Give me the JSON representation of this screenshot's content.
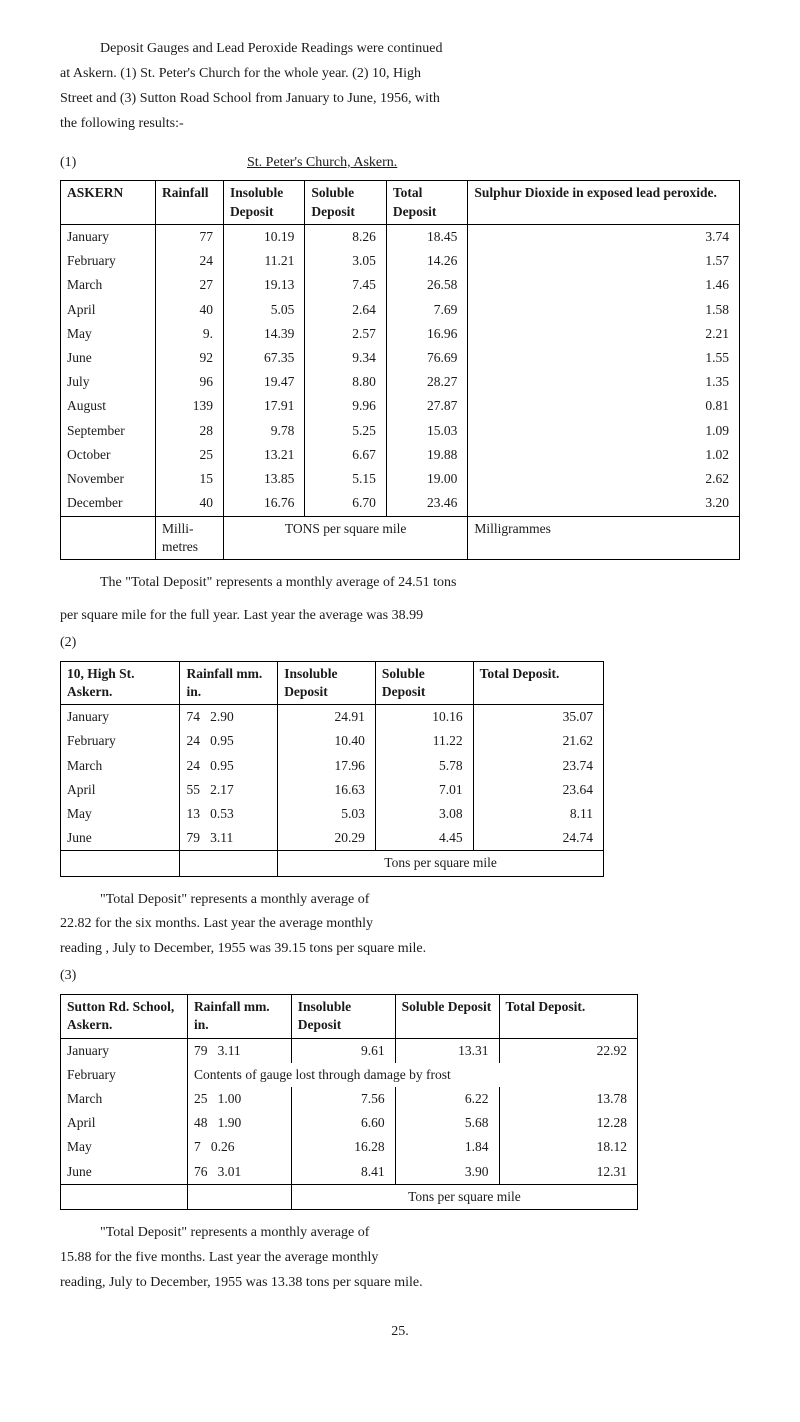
{
  "intro": {
    "line1": "Deposit Gauges and Lead Peroxide Readings were continued",
    "line2": "at Askern. (1) St. Peter's Church for the whole year. (2) 10, High",
    "line3": "Street and (3) Sutton Road School from January to June, 1956, with",
    "line4": "the following results:-"
  },
  "table1": {
    "label": "(1)",
    "caption": "St. Peter's Church, Askern.",
    "headers": [
      "ASKERN",
      "Rainfall",
      "Insoluble Deposit",
      "Soluble Deposit",
      "Total Deposit",
      "Sulphur Dioxide in exposed lead peroxide."
    ],
    "rows": [
      [
        "January",
        "77",
        "10.19",
        "8.26",
        "18.45",
        "3.74"
      ],
      [
        "February",
        "24",
        "11.21",
        "3.05",
        "14.26",
        "1.57"
      ],
      [
        "March",
        "27",
        "19.13",
        "7.45",
        "26.58",
        "1.46"
      ],
      [
        "April",
        "40",
        "5.05",
        "2.64",
        "7.69",
        "1.58"
      ],
      [
        "May",
        "9.",
        "14.39",
        "2.57",
        "16.96",
        "2.21"
      ],
      [
        "June",
        "92",
        "67.35",
        "9.34",
        "76.69",
        "1.55"
      ],
      [
        "July",
        "96",
        "19.47",
        "8.80",
        "28.27",
        "1.35"
      ],
      [
        "August",
        "139",
        "17.91",
        "9.96",
        "27.87",
        "0.81"
      ],
      [
        "September",
        "28",
        "9.78",
        "5.25",
        "15.03",
        "1.09"
      ],
      [
        "October",
        "25",
        "13.21",
        "6.67",
        "19.88",
        "1.02"
      ],
      [
        "November",
        "15",
        "13.85",
        "5.15",
        "19.00",
        "2.62"
      ],
      [
        "December",
        "40",
        "16.76",
        "6.70",
        "23.46",
        "3.20"
      ]
    ],
    "footer": [
      "",
      "Milli-metres",
      "TONS per square mile",
      "Milligrammes"
    ],
    "note1": "The \"Total Deposit\" represents a monthly average of 24.51 tons",
    "note2": "per square mile for the full year.   Last year the average was 38.99"
  },
  "table2": {
    "label": "(2)",
    "headers": [
      "10, High St. Askern.",
      "Rainfall mm.  in.",
      "Insoluble Deposit",
      "Soluble Deposit",
      "Total Deposit."
    ],
    "rows": [
      [
        "January",
        "74   2.90",
        "24.91",
        "10.16",
        "35.07"
      ],
      [
        "February",
        "24   0.95",
        "10.40",
        "11.22",
        "21.62"
      ],
      [
        "March",
        "24   0.95",
        "17.96",
        "5.78",
        "23.74"
      ],
      [
        "April",
        "55   2.17",
        "16.63",
        "7.01",
        "23.64"
      ],
      [
        "May",
        "13   0.53",
        "5.03",
        "3.08",
        "8.11"
      ],
      [
        "June",
        "79   3.11",
        "20.29",
        "4.45",
        "24.74"
      ]
    ],
    "footer": "Tons per square mile",
    "note1": "\"Total Deposit\" represents a monthly average of",
    "note2": "22.82 for the six months.    Last year the average monthly",
    "note3": "reading , July to December, 1955 was 39.15 tons per square mile."
  },
  "table3": {
    "label": "(3)",
    "headers": [
      "Sutton Rd. School, Askern.",
      "Rainfall mm.  in.",
      "Insoluble Deposit",
      "Soluble Deposit",
      "Total Deposit."
    ],
    "rows": [
      [
        "January",
        "79   3.11",
        "9.61",
        "13.31",
        "22.92"
      ],
      [
        "February",
        "Contents of gauge lost through damage by frost",
        "",
        "",
        ""
      ],
      [
        "March",
        "25   1.00",
        "7.56",
        "6.22",
        "13.78"
      ],
      [
        "April",
        "48   1.90",
        "6.60",
        "5.68",
        "12.28"
      ],
      [
        "May",
        "7   0.26",
        "16.28",
        "1.84",
        "18.12"
      ],
      [
        "June",
        "76   3.01",
        "8.41",
        "3.90",
        "12.31"
      ]
    ],
    "footer": "Tons per square mile",
    "note1": "\"Total Deposit\" represents a monthly average of",
    "note2": "15.88 for the five months.   Last year the average monthly",
    "note3": "reading, July to December, 1955 was 13.38 tons per square mile."
  },
  "pagenum": "25."
}
